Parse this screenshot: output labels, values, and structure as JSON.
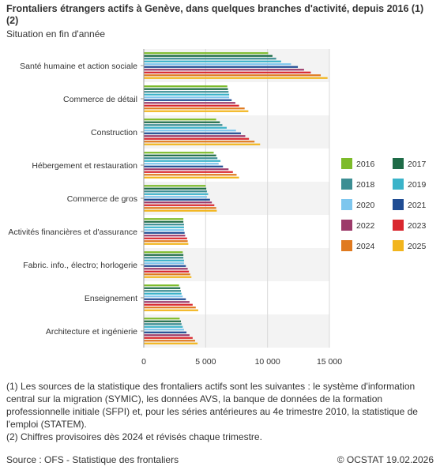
{
  "header": {
    "title": "Frontaliers étrangers actifs à Genève, dans quelques branches d'activité, depuis 2016 (1) (2)",
    "subtitle": "Situation en fin d'année"
  },
  "chart_data": {
    "type": "bar",
    "orientation": "horizontal",
    "categories": [
      "Santé humaine et action sociale",
      "Commerce de détail",
      "Construction",
      "Hébergement et restauration",
      "Commerce de gros",
      "Activités financières et d'assurance",
      "Fabric. info., électro; horlogerie",
      "Enseignement",
      "Architecture et ingénierie"
    ],
    "xlim": [
      0,
      15000
    ],
    "xticks": [
      "0",
      "5 000",
      "10 000",
      "15 000"
    ],
    "xtick_values": [
      0,
      5000,
      10000,
      15000
    ],
    "grid": "vertical",
    "legend_position": "right",
    "series": [
      {
        "name": "2016",
        "color": "#7dbb2a",
        "values": [
          10050,
          6750,
          5850,
          5650,
          5000,
          3200,
          3150,
          2850,
          2900
        ]
      },
      {
        "name": "2017",
        "color": "#1e6b47",
        "values": [
          10400,
          6800,
          6150,
          5850,
          5050,
          3200,
          3200,
          2950,
          3000
        ]
      },
      {
        "name": "2018",
        "color": "#3c8e93",
        "values": [
          10700,
          6850,
          6350,
          5950,
          5100,
          3250,
          3200,
          3000,
          3050
        ]
      },
      {
        "name": "2019",
        "color": "#3ab3c9",
        "values": [
          11100,
          6900,
          6700,
          6200,
          5200,
          3250,
          3250,
          3050,
          3150
        ]
      },
      {
        "name": "2020",
        "color": "#7dc6ee",
        "values": [
          11900,
          6900,
          7450,
          6050,
          5100,
          3250,
          3250,
          3150,
          3250
        ]
      },
      {
        "name": "2021",
        "color": "#1f4c93",
        "values": [
          12450,
          7100,
          7850,
          6400,
          5350,
          3300,
          3400,
          3400,
          3450
        ]
      },
      {
        "name": "2022",
        "color": "#9c3a6a",
        "values": [
          12950,
          7400,
          8200,
          6850,
          5500,
          3350,
          3550,
          3700,
          3700
        ]
      },
      {
        "name": "2023",
        "color": "#d9272e",
        "values": [
          13500,
          7700,
          8500,
          7200,
          5700,
          3500,
          3650,
          3950,
          3950
        ]
      },
      {
        "name": "2024",
        "color": "#e07a1f",
        "values": [
          14300,
          8150,
          8950,
          7500,
          5850,
          3550,
          3750,
          4200,
          4150
        ]
      },
      {
        "name": "2025",
        "color": "#f2b51d",
        "values": [
          14850,
          8450,
          9400,
          7700,
          5900,
          3600,
          3850,
          4400,
          4350
        ]
      }
    ]
  },
  "notes": [
    "(1) Les sources de la statistique des frontaliers actifs sont les suivantes : le système d'information central sur la migration (SYMIC), les données AVS, la banque de données de la formation professionnelle initiale (SFPI) et, pour les séries antérieures au 4e trimestre 2010, la statistique de l'emploi (STATEM).",
    "(2) Chiffres provisoires dès 2024 et révisés chaque trimestre."
  ],
  "footer": {
    "source": "Source : OFS - Statistique des frontaliers",
    "credit": "© OCSTAT 19.02.2026"
  }
}
